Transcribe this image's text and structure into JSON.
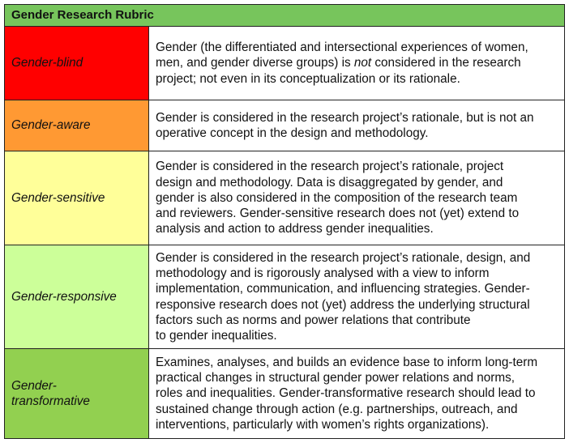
{
  "title": "Gender Research Rubric",
  "rows": [
    {
      "level": [
        "Gender-blind"
      ],
      "color": "#ff0000",
      "lines": [
        [
          {
            "t": "Gender (the differentiated and intersectional experiences of women,"
          }
        ],
        [
          {
            "t": "men, and gender diverse groups) is "
          },
          {
            "t": "not",
            "i": true
          },
          {
            "t": " considered in the research"
          }
        ],
        [
          {
            "t": "project; not even in its conceptualization or its rationale."
          }
        ]
      ]
    },
    {
      "level": [
        "Gender-aware"
      ],
      "color": "#ff9933",
      "lines": [
        [
          {
            "t": "Gender is considered in the research project’s rationale, but is not an"
          }
        ],
        [
          {
            "t": "operative concept in the design and methodology."
          }
        ]
      ]
    },
    {
      "level": [
        "Gender-sensitive"
      ],
      "color": "#ffff99",
      "lines": [
        [
          {
            "t": "Gender is considered in the research project’s rationale, project"
          }
        ],
        [
          {
            "t": "design and methodology. Data is disaggregated by gender, and"
          }
        ],
        [
          {
            "t": "gender is also considered in the composition of the research team"
          }
        ],
        [
          {
            "t": "and reviewers. Gender-sensitive research does not (yet) extend to"
          }
        ],
        [
          {
            "t": "analysis and action to address gender inequalities."
          }
        ]
      ]
    },
    {
      "level": [
        "Gender-responsive"
      ],
      "color": "#ccff99",
      "lines": [
        [
          {
            "t": "Gender is considered in the research project’s rationale, design, and"
          }
        ],
        [
          {
            "t": "methodology and is rigorously analysed with a view to inform"
          }
        ],
        [
          {
            "t": "implementation, communication, and influencing strategies. Gender-"
          }
        ],
        [
          {
            "t": "responsive research does not (yet) address the underlying structural"
          }
        ],
        [
          {
            "t": "factors such as norms and power relations that contribute"
          }
        ],
        [
          {
            "t": "to gender inequalities."
          }
        ]
      ]
    },
    {
      "level": [
        "Gender-",
        "transformative"
      ],
      "color": "#92d050",
      "lines": [
        [
          {
            "t": "Examines, analyses, and builds an evidence base to inform long-term"
          }
        ],
        [
          {
            "t": "practical changes in structural gender power relations and norms,"
          }
        ],
        [
          {
            "t": "roles and inequalities. Gender-transformative research should lead to"
          }
        ],
        [
          {
            "t": "sustained change through action (e.g. partnerships, outreach, and"
          }
        ],
        [
          {
            "t": "interventions, particularly with women’s rights organizations)."
          }
        ]
      ]
    }
  ]
}
